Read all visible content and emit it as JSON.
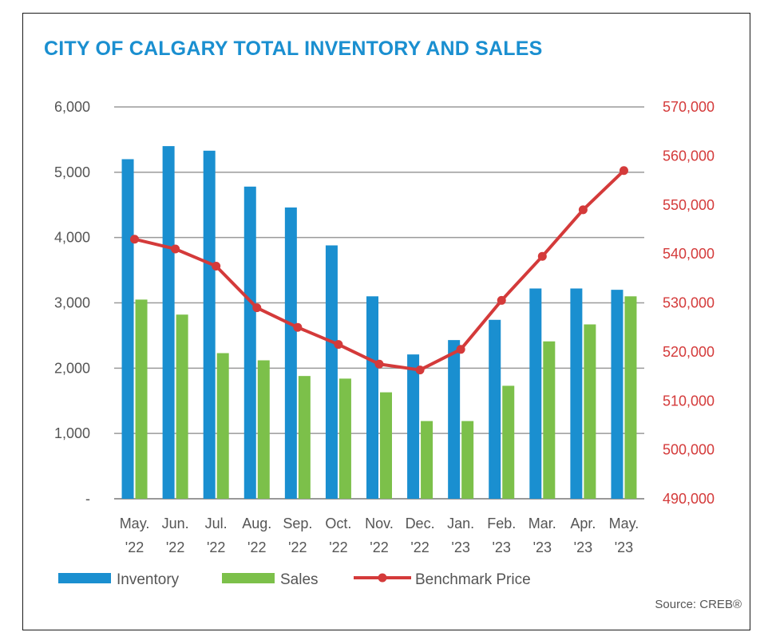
{
  "chart_data": {
    "type": "bar",
    "title": "CITY OF CALGARY TOTAL INVENTORY AND SALES",
    "categories": [
      [
        "May.",
        "'22"
      ],
      [
        "Jun.",
        "'22"
      ],
      [
        "Jul.",
        "'22"
      ],
      [
        "Aug.",
        "'22"
      ],
      [
        "Sep.",
        "'22"
      ],
      [
        "Oct.",
        "'22"
      ],
      [
        "Nov.",
        "'22"
      ],
      [
        "Dec.",
        "'22"
      ],
      [
        "Jan.",
        "'23"
      ],
      [
        "Feb.",
        "'23"
      ],
      [
        "Mar.",
        "'23"
      ],
      [
        "Apr.",
        "'23"
      ],
      [
        "May.",
        "'23"
      ]
    ],
    "series": [
      {
        "name": "Inventory",
        "type": "bar",
        "axis": "left",
        "color": "#1a8fd0",
        "values": [
          5200,
          5400,
          5330,
          4780,
          4460,
          3880,
          3100,
          2210,
          2430,
          2740,
          3220,
          3220,
          3200
        ]
      },
      {
        "name": "Sales",
        "type": "bar",
        "axis": "left",
        "color": "#7cc04a",
        "values": [
          3050,
          2820,
          2230,
          2120,
          1880,
          1840,
          1630,
          1190,
          1190,
          1730,
          2410,
          2670,
          3100
        ]
      },
      {
        "name": "Benchmark Price",
        "type": "line",
        "axis": "right",
        "color": "#d43a3a",
        "values": [
          543000,
          541000,
          537500,
          529000,
          525000,
          521500,
          517500,
          516300,
          520500,
          530500,
          539500,
          549000,
          557000
        ]
      }
    ],
    "y_left": {
      "min": 0,
      "max": 6000,
      "ticks": [
        "-",
        "1,000",
        "2,000",
        "3,000",
        "4,000",
        "5,000",
        "6,000"
      ]
    },
    "y_right": {
      "min": 490000,
      "max": 570000,
      "ticks": [
        "490,000",
        "500,000",
        "510,000",
        "520,000",
        "530,000",
        "540,000",
        "550,000",
        "560,000",
        "570,000"
      ]
    },
    "grid": true,
    "legend": {
      "placement": "bottom",
      "labels": [
        "Inventory",
        "Sales",
        "Benchmark Price"
      ]
    },
    "source": "Source: CREB®"
  }
}
